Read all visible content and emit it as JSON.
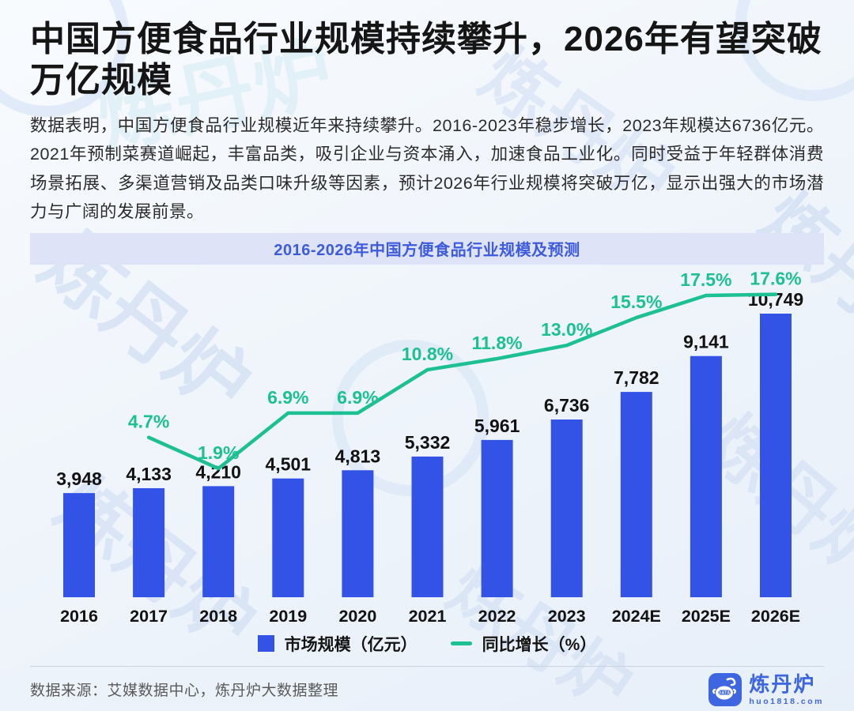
{
  "page": {
    "watermark_text": "炼丹炉"
  },
  "header": {
    "title": "中国方便食品行业规模持续攀升，2026年有望突破万亿规模",
    "description": "数据表明，中国方便食品行业规模近年来持续攀升。2016-2023年稳步增长，2023年规模达6736亿元。2021年预制菜赛道崛起，丰富品类，吸引企业与资本涌入，加速食品工业化。同时受益于年轻群体消费场景拓展、多渠道营销及品类口味升级等因素，预计2026年行业规模将突破万亿，显示出强大的市场潜力与广阔的发展前景。"
  },
  "chart": {
    "title": "2016-2026年中国方便食品行业规模及预测"
  },
  "chart_data": {
    "type": "bar+line",
    "title": "2016-2026年中国方便食品行业规模及预测",
    "categories": [
      "2016",
      "2017",
      "2018",
      "2019",
      "2020",
      "2021",
      "2022",
      "2023",
      "2024E",
      "2025E",
      "2026E"
    ],
    "series": [
      {
        "name": "市场规模（亿元）",
        "type": "bar",
        "color": "#3353e6",
        "values": [
          3948,
          4133,
          4210,
          4501,
          4813,
          5332,
          5961,
          6736,
          7782,
          9141,
          10749
        ],
        "labels": [
          "3,948",
          "4,133",
          "4,210",
          "4,501",
          "4,813",
          "5,332",
          "5,961",
          "6,736",
          "7,782",
          "9,141",
          "10,749"
        ]
      },
      {
        "name": "同比增长（%）",
        "type": "line",
        "color": "#1cc093",
        "values": [
          null,
          4.7,
          1.9,
          6.9,
          6.9,
          10.8,
          11.8,
          13.0,
          15.5,
          17.5,
          17.6
        ],
        "labels": [
          null,
          "4.7%",
          "1.9%",
          "6.9%",
          "6.9%",
          "10.8%",
          "11.8%",
          "13.0%",
          "15.5%",
          "17.5%",
          "17.6%"
        ]
      }
    ],
    "value_labels": true,
    "grid": false,
    "axes_visible": false,
    "legend_position": "bottom",
    "left_axis_range": [
      0,
      11000
    ],
    "right_axis_range_pct": [
      0,
      20
    ]
  },
  "footer": {
    "source": "数据来源：艾媒数据中心，炼丹炉大数据整理",
    "logo": {
      "name": "炼丹炉",
      "url": "huo1818.com",
      "badge_text": "DATA"
    }
  }
}
